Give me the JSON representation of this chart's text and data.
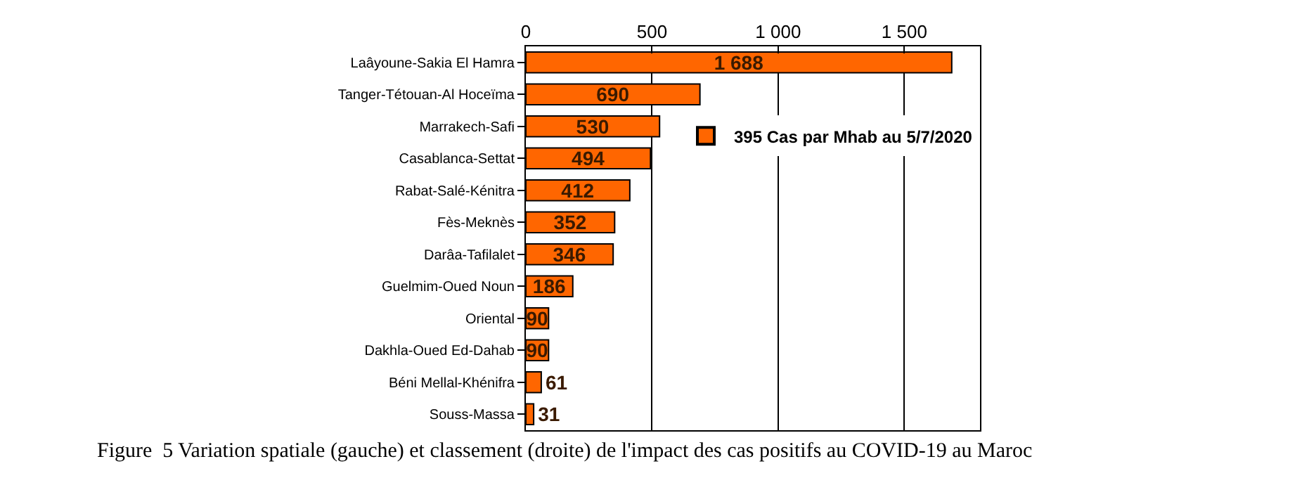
{
  "chart_data": {
    "type": "bar",
    "orientation": "horizontal",
    "categories": [
      "Laâyoune-Sakia El Hamra",
      "Tanger-Tétouan-Al Hoceïma",
      "Marrakech-Safi",
      "Casablanca-Settat",
      "Rabat-Salé-Kénitra",
      "Fès-Meknès",
      "Darâa-Tafilalet",
      "Guelmim-Oued Noun",
      "Oriental",
      "Dakhla-Oued Ed-Dahab",
      "Béni Mellal-Khénifra",
      "Souss-Massa"
    ],
    "series": [
      {
        "name": "395 Cas par Mhab au 5/7/2020",
        "color": "#ff6600",
        "values": [
          1688,
          690,
          530,
          494,
          412,
          352,
          346,
          186,
          90,
          90,
          61,
          31
        ],
        "value_labels": [
          "1 688",
          "690",
          "530",
          "494",
          "412",
          "352",
          "346",
          "186",
          "90",
          "90",
          "61",
          "31"
        ]
      }
    ],
    "xlim": [
      0,
      1800
    ],
    "xticks": [
      0,
      500,
      {
        "value": 1000,
        "label": "1 000"
      },
      {
        "value": 1500,
        "label": "1 500"
      }
    ],
    "grid": "x",
    "legend": "top right",
    "annotations": [
      "Figure  5 Variation spatiale (gauche) et classement (droite) de l'impact des cas positifs au COVID-19 au Maroc"
    ]
  }
}
